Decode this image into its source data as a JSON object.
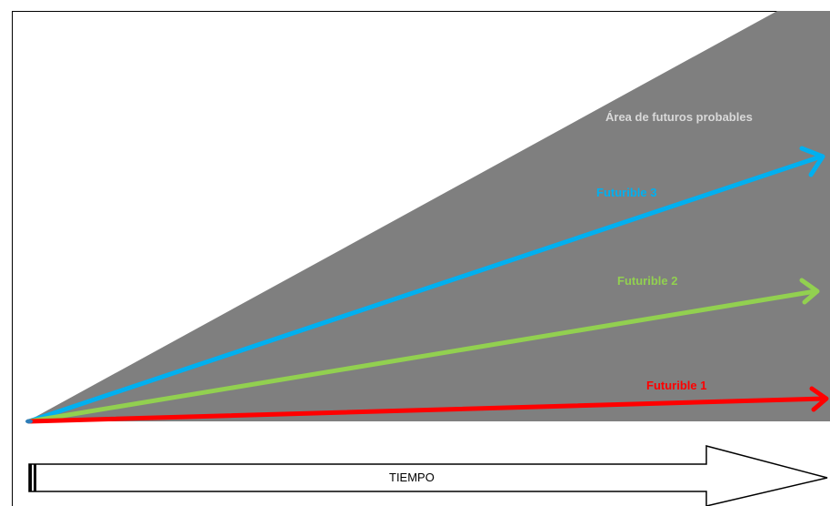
{
  "diagram": {
    "area_label": "Área de futuros probables",
    "arrow_axis_label": "TIEMPO",
    "futuribles": [
      {
        "name": "Futurible 3",
        "color": "#00b0f0"
      },
      {
        "name": "Futurible 2",
        "color": "#92d050"
      },
      {
        "name": "Futurible 1",
        "color": "#ff0000"
      }
    ],
    "colors": {
      "area_fill": "#7f7f7f",
      "area_label": "#d9d9d9",
      "frame": "#000000"
    }
  }
}
